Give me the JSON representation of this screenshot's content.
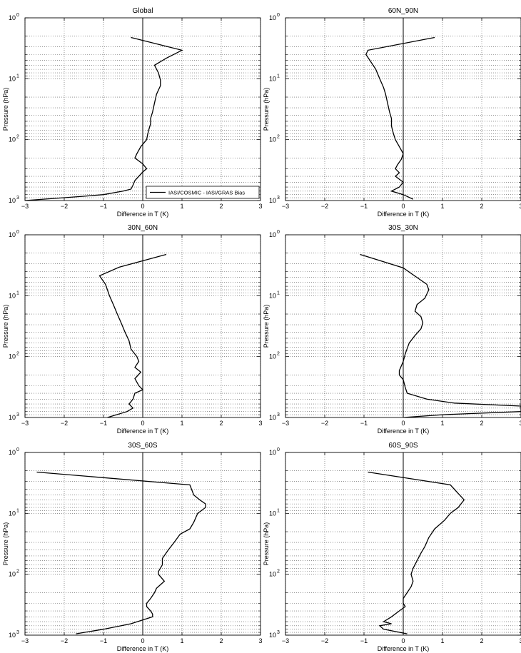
{
  "legend_label": "IASI/COSMIC - IASI/GRAS Bias",
  "chart_data": [
    {
      "type": "line",
      "title": "Global",
      "xlabel": "Difference in T (K)",
      "ylabel": "Pressure (hPa)",
      "xlim": [
        -3,
        3
      ],
      "ylim": [
        1,
        1000
      ],
      "y_scale": "log",
      "y_reversed": true,
      "grid": true,
      "xticks": [
        "−3",
        "−2",
        "−1",
        "0",
        "1",
        "2",
        "3"
      ],
      "yticks_exp": [
        "0",
        "1",
        "2",
        "3"
      ],
      "legend": "bottom-right",
      "series": [
        {
          "name": "IASI/COSMIC - IASI/GRAS Bias",
          "points": [
            [
              -0.3,
              2.1
            ],
            [
              1.0,
              3.4
            ],
            [
              0.6,
              4.6
            ],
            [
              0.3,
              6.0
            ],
            [
              0.4,
              8.0
            ],
            [
              0.45,
              10.5
            ],
            [
              0.45,
              13
            ],
            [
              0.35,
              18
            ],
            [
              0.3,
              25
            ],
            [
              0.25,
              35
            ],
            [
              0.2,
              45
            ],
            [
              0.2,
              55
            ],
            [
              0.15,
              70
            ],
            [
              0.12,
              85
            ],
            [
              0.1,
              100
            ],
            [
              -0.05,
              130
            ],
            [
              -0.15,
              170
            ],
            [
              -0.2,
              200
            ],
            [
              0.0,
              250
            ],
            [
              0.1,
              300
            ],
            [
              0.0,
              340
            ],
            [
              -0.1,
              400
            ],
            [
              -0.2,
              470
            ],
            [
              -0.25,
              560
            ],
            [
              -0.3,
              650
            ],
            [
              -0.5,
              700
            ],
            [
              -1.0,
              800
            ],
            [
              -1.5,
              850
            ],
            [
              -3.0,
              1000
            ]
          ]
        }
      ]
    },
    {
      "type": "line",
      "title": "60N_90N",
      "xlabel": "Difference in T (K)",
      "ylabel": "Pressure (hPa)",
      "xlim": [
        -3,
        3
      ],
      "ylim": [
        1,
        1000
      ],
      "y_scale": "log",
      "y_reversed": true,
      "grid": true,
      "xticks": [
        "−3",
        "−2",
        "−1",
        "0",
        "1",
        "2",
        "3"
      ],
      "yticks_exp": [
        "0",
        "1",
        "2",
        "3"
      ],
      "series": [
        {
          "points": [
            [
              0.8,
              2.1
            ],
            [
              -0.9,
              3.4
            ],
            [
              -0.95,
              4.0
            ],
            [
              -0.85,
              5.0
            ],
            [
              -0.7,
              7.0
            ],
            [
              -0.6,
              10
            ],
            [
              -0.5,
              14
            ],
            [
              -0.45,
              18
            ],
            [
              -0.4,
              25
            ],
            [
              -0.35,
              35
            ],
            [
              -0.3,
              45
            ],
            [
              -0.3,
              60
            ],
            [
              -0.25,
              80
            ],
            [
              -0.2,
              100
            ],
            [
              -0.1,
              130
            ],
            [
              0.0,
              170
            ],
            [
              -0.05,
              210
            ],
            [
              -0.15,
              260
            ],
            [
              -0.2,
              300
            ],
            [
              -0.1,
              350
            ],
            [
              -0.2,
              400
            ],
            [
              0.0,
              500
            ],
            [
              -0.1,
              600
            ],
            [
              -0.3,
              700
            ],
            [
              0.0,
              800
            ],
            [
              0.25,
              950
            ]
          ]
        }
      ]
    },
    {
      "type": "line",
      "title": "30N_60N",
      "xlabel": "Difference in T (K)",
      "ylabel": "Pressure (hPa)",
      "xlim": [
        -3,
        3
      ],
      "ylim": [
        1,
        1000
      ],
      "y_scale": "log",
      "y_reversed": true,
      "grid": true,
      "xticks": [
        "−3",
        "−2",
        "−1",
        "0",
        "1",
        "2",
        "3"
      ],
      "yticks_exp": [
        "0",
        "1",
        "2",
        "3"
      ],
      "series": [
        {
          "points": [
            [
              0.6,
              2.1
            ],
            [
              -0.6,
              3.4
            ],
            [
              -1.1,
              4.7
            ],
            [
              -0.95,
              6.5
            ],
            [
              -0.9,
              8.0
            ],
            [
              -0.85,
              10
            ],
            [
              -0.75,
              14
            ],
            [
              -0.65,
              20
            ],
            [
              -0.55,
              28
            ],
            [
              -0.45,
              40
            ],
            [
              -0.35,
              55
            ],
            [
              -0.3,
              75
            ],
            [
              -0.15,
              100
            ],
            [
              -0.1,
              120
            ],
            [
              -0.2,
              150
            ],
            [
              -0.05,
              180
            ],
            [
              -0.2,
              230
            ],
            [
              -0.1,
              300
            ],
            [
              0.0,
              350
            ],
            [
              -0.2,
              400
            ],
            [
              -0.25,
              500
            ],
            [
              -0.35,
              600
            ],
            [
              -0.25,
              700
            ],
            [
              -0.4,
              800
            ],
            [
              -0.9,
              1000
            ]
          ]
        }
      ]
    },
    {
      "type": "line",
      "title": "30S_30N",
      "xlabel": "Difference in T (K)",
      "ylabel": "Pressure (hPa)",
      "xlim": [
        -3,
        3
      ],
      "ylim": [
        1,
        1000
      ],
      "y_scale": "log",
      "y_reversed": true,
      "grid": true,
      "xticks": [
        "−3",
        "−2",
        "−1",
        "0",
        "1",
        "2",
        "3"
      ],
      "yticks_exp": [
        "0",
        "1",
        "2",
        "3"
      ],
      "series": [
        {
          "points": [
            [
              -1.1,
              2.1
            ],
            [
              0.0,
              3.5
            ],
            [
              0.6,
              6.5
            ],
            [
              0.65,
              8.0
            ],
            [
              0.55,
              11
            ],
            [
              0.35,
              14
            ],
            [
              0.3,
              18
            ],
            [
              0.45,
              22
            ],
            [
              0.5,
              28
            ],
            [
              0.45,
              35
            ],
            [
              0.3,
              45
            ],
            [
              0.15,
              60
            ],
            [
              0.05,
              90
            ],
            [
              0.0,
              120
            ],
            [
              -0.1,
              170
            ],
            [
              -0.1,
              200
            ],
            [
              0.0,
              240
            ],
            [
              0.05,
              320
            ],
            [
              0.1,
              400
            ],
            [
              0.6,
              500
            ],
            [
              1.3,
              580
            ],
            [
              3.0,
              650
            ],
            [
              3.0,
              800
            ],
            [
              1.0,
              900
            ],
            [
              0.0,
              1000
            ]
          ]
        }
      ]
    },
    {
      "type": "line",
      "title": "30S_60S",
      "xlabel": "Difference in T (K)",
      "ylabel": "Pressure (hPa)",
      "xlim": [
        -3,
        3
      ],
      "ylim": [
        1,
        1000
      ],
      "y_scale": "log",
      "y_reversed": true,
      "grid": true,
      "xticks": [
        "−3",
        "−2",
        "−1",
        "0",
        "1",
        "2",
        "3"
      ],
      "yticks_exp": [
        "0",
        "1",
        "2",
        "3"
      ],
      "series": [
        {
          "points": [
            [
              -2.7,
              2.1
            ],
            [
              1.2,
              3.4
            ],
            [
              1.3,
              5.0
            ],
            [
              1.45,
              6.0
            ],
            [
              1.6,
              7.0
            ],
            [
              1.6,
              8.0
            ],
            [
              1.4,
              10
            ],
            [
              1.3,
              14
            ],
            [
              1.2,
              18
            ],
            [
              0.95,
              22
            ],
            [
              0.8,
              30
            ],
            [
              0.65,
              40
            ],
            [
              0.5,
              55
            ],
            [
              0.5,
              70
            ],
            [
              0.4,
              90
            ],
            [
              0.4,
              100
            ],
            [
              0.55,
              130
            ],
            [
              0.35,
              170
            ],
            [
              0.3,
              200
            ],
            [
              0.2,
              250
            ],
            [
              0.1,
              300
            ],
            [
              0.1,
              340
            ],
            [
              0.2,
              400
            ],
            [
              0.25,
              450
            ],
            [
              0.25,
              500
            ],
            [
              -0.3,
              650
            ],
            [
              -1.0,
              800
            ],
            [
              -1.7,
              950
            ]
          ]
        }
      ]
    },
    {
      "type": "line",
      "title": "60S_90S",
      "xlabel": "Difference in T (K)",
      "ylabel": "Pressure (hPa)",
      "xlim": [
        -3,
        3
      ],
      "ylim": [
        1,
        1000
      ],
      "y_scale": "log",
      "y_reversed": true,
      "grid": true,
      "xticks": [
        "−3",
        "−2",
        "−1",
        "0",
        "1",
        "2",
        "3"
      ],
      "yticks_exp": [
        "0",
        "1",
        "2",
        "3"
      ],
      "series": [
        {
          "points": [
            [
              -0.9,
              2.1
            ],
            [
              1.2,
              3.4
            ],
            [
              1.4,
              4.7
            ],
            [
              1.55,
              6.0
            ],
            [
              1.4,
              8.0
            ],
            [
              1.2,
              10
            ],
            [
              1.05,
              13
            ],
            [
              0.8,
              18
            ],
            [
              0.65,
              25
            ],
            [
              0.55,
              35
            ],
            [
              0.45,
              45
            ],
            [
              0.35,
              60
            ],
            [
              0.25,
              80
            ],
            [
              0.2,
              100
            ],
            [
              0.25,
              130
            ],
            [
              0.2,
              160
            ],
            [
              0.1,
              200
            ],
            [
              0.0,
              250
            ],
            [
              0.0,
              300
            ],
            [
              0.05,
              340
            ],
            [
              -0.1,
              400
            ],
            [
              -0.3,
              500
            ],
            [
              -0.5,
              600
            ],
            [
              -0.3,
              650
            ],
            [
              -0.6,
              700
            ],
            [
              -0.5,
              800
            ],
            [
              0.1,
              950
            ]
          ]
        }
      ]
    }
  ]
}
